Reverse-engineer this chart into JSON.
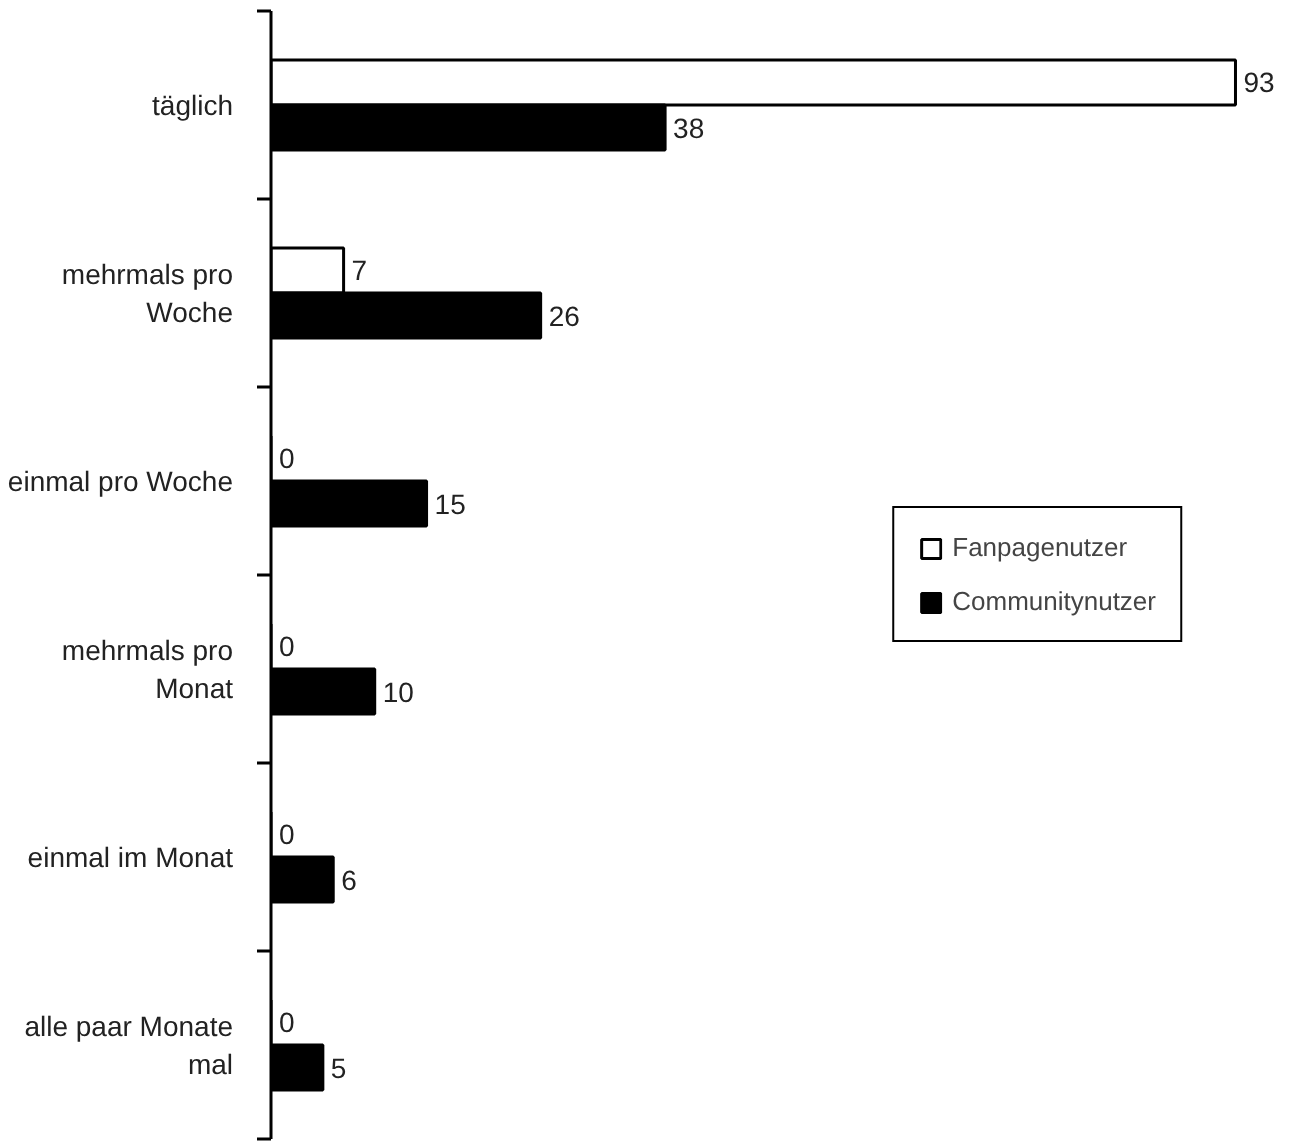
{
  "chart_data": {
    "type": "bar",
    "orientation": "horizontal",
    "categories": [
      "täglich",
      "mehrmals pro\nWoche",
      "einmal pro Woche",
      "mehrmals pro\nMonat",
      "einmal im Monat",
      "alle paar Monate\nmal"
    ],
    "series": [
      {
        "name": "Fanpagenutzer",
        "color": "#ffffff",
        "values": [
          93,
          7,
          0,
          0,
          0,
          0
        ]
      },
      {
        "name": "Communitynutzer",
        "color": "#000000",
        "values": [
          38,
          26,
          15,
          10,
          6,
          5
        ]
      }
    ],
    "data_labels": true,
    "legend": "center right",
    "grid": false
  }
}
